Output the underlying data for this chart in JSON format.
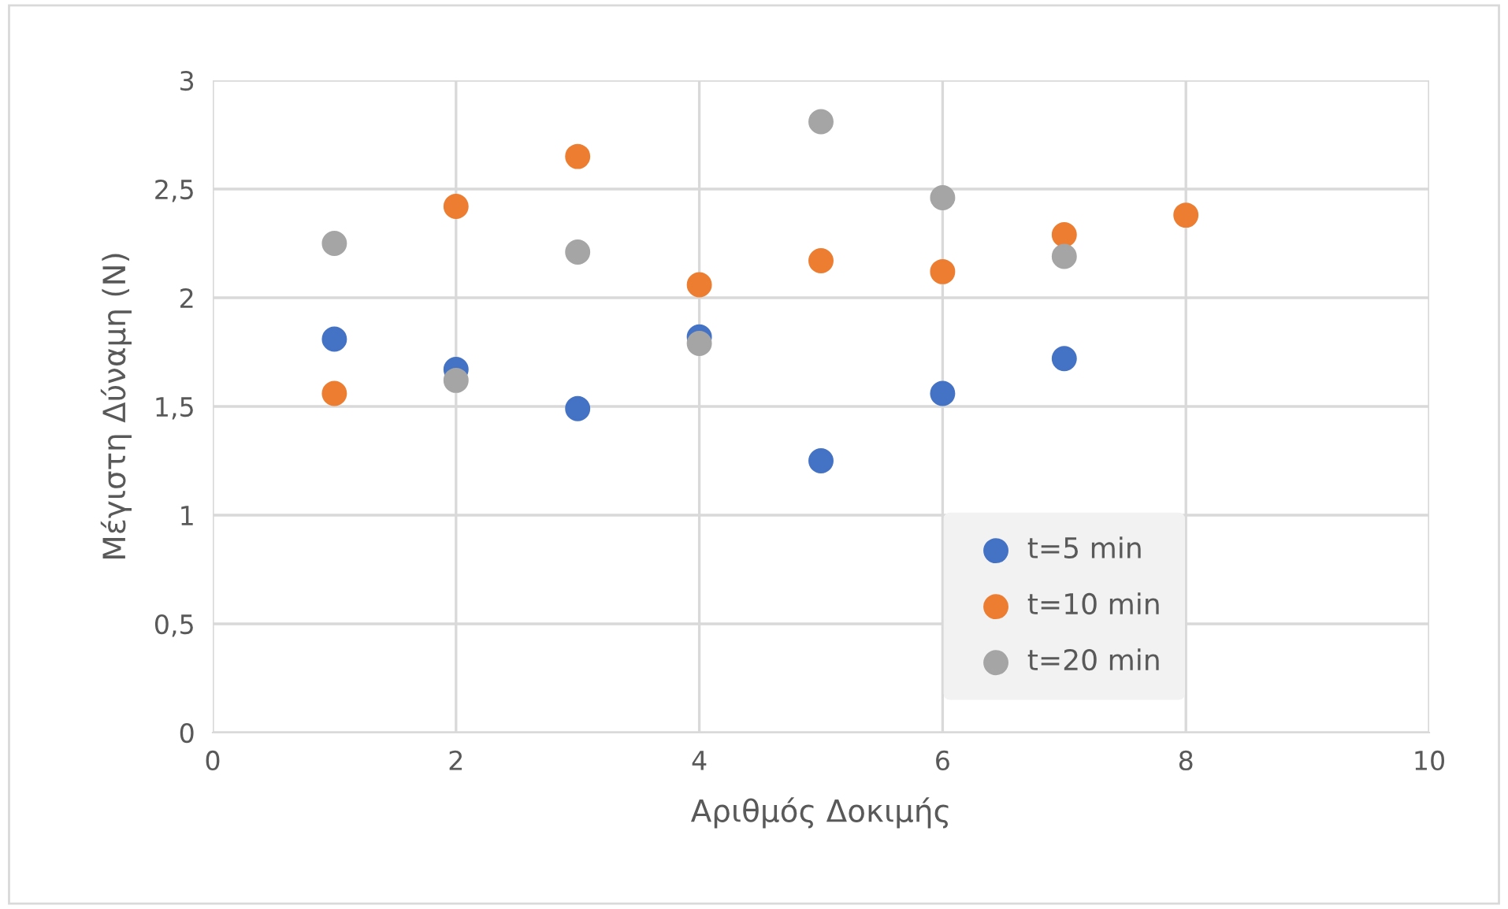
{
  "chart_data": {
    "type": "scatter",
    "xlabel": "Αριθμός Δοκιμής",
    "ylabel": "Μέγιστη Δύναμη (N)",
    "xlim": [
      0,
      10
    ],
    "xticks": [
      0,
      2,
      4,
      6,
      8,
      10
    ],
    "ylim": [
      0,
      3
    ],
    "yticks": [
      0,
      {
        "value": 0.5,
        "label": "0,5"
      },
      1,
      {
        "value": 1.5,
        "label": "1,5"
      },
      2,
      {
        "value": 2.5,
        "label": "2,5"
      },
      3
    ],
    "grid": true,
    "legend": "bottom right",
    "marker": "circle",
    "series": [
      {
        "name": "t=5 min",
        "color": "#4472c4",
        "x": [
          1,
          2,
          3,
          4,
          5,
          6,
          7
        ],
        "values": [
          1.81,
          1.67,
          1.49,
          1.82,
          1.25,
          1.56,
          1.72
        ]
      },
      {
        "name": "t=10 min",
        "color": "#ed7d31",
        "x": [
          1,
          2,
          3,
          4,
          5,
          6,
          7,
          8
        ],
        "values": [
          1.56,
          2.42,
          2.65,
          2.06,
          2.17,
          2.12,
          2.29,
          2.38
        ]
      },
      {
        "name": "t=20 min",
        "color": "#a5a5a5",
        "x": [
          1,
          2,
          3,
          4,
          5,
          6,
          7
        ],
        "values": [
          2.25,
          1.62,
          2.21,
          1.79,
          2.81,
          2.46,
          2.19
        ]
      }
    ]
  }
}
